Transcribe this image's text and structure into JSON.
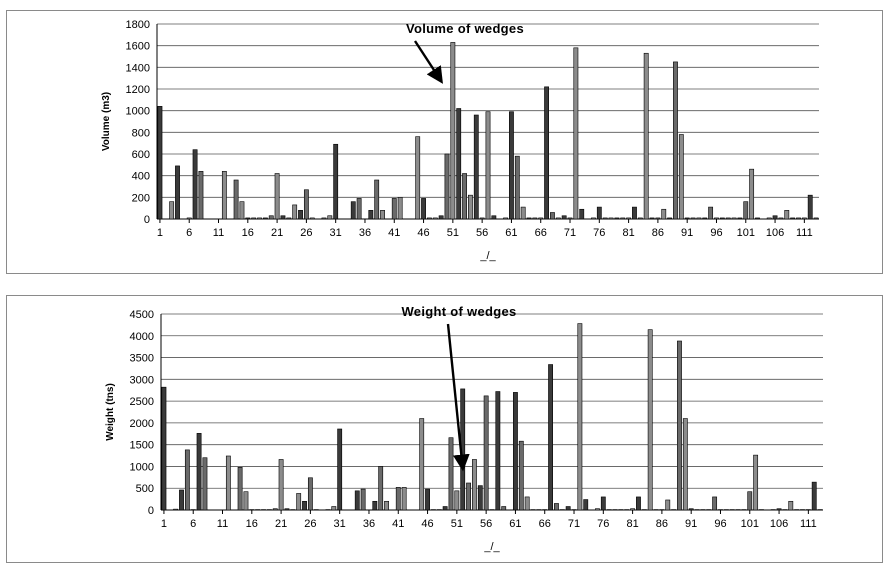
{
  "chart_data": [
    {
      "type": "bar",
      "ylabel": "Volume (m3)",
      "xlabel": "_/_",
      "annotation": "Volume of wedges",
      "annotation_target_x": 49,
      "ylim": [
        0,
        1800
      ],
      "yticks": [
        0,
        200,
        400,
        600,
        800,
        1000,
        1200,
        1400,
        1600,
        1800
      ],
      "xticks": [
        "1",
        "6",
        "11",
        "16",
        "21",
        "26",
        "31",
        "36",
        "41",
        "46",
        "51",
        "56",
        "61",
        "66",
        "71",
        "76",
        "81",
        "86",
        "91",
        "96",
        "101",
        "106",
        "111"
      ],
      "grid": true,
      "legend": "none",
      "x": [
        1,
        2,
        3,
        4,
        5,
        6,
        7,
        8,
        9,
        10,
        11,
        12,
        13,
        14,
        15,
        16,
        17,
        18,
        19,
        20,
        21,
        22,
        23,
        24,
        25,
        26,
        27,
        28,
        29,
        30,
        31,
        32,
        33,
        34,
        35,
        36,
        37,
        38,
        39,
        40,
        41,
        42,
        43,
        44,
        45,
        46,
        47,
        48,
        49,
        50,
        51,
        52,
        53,
        54,
        55,
        56,
        57,
        58,
        59,
        60,
        61,
        62,
        63,
        64,
        65,
        66,
        67,
        68,
        69,
        70,
        71,
        72,
        73,
        74,
        75,
        76,
        77,
        78,
        79,
        80,
        81,
        82,
        83,
        84,
        85,
        86,
        87,
        88,
        89,
        90,
        91,
        92,
        93,
        94,
        95,
        96,
        97,
        98,
        99,
        100,
        101,
        102,
        103,
        104,
        105,
        106,
        107,
        108,
        109,
        110,
        111,
        112,
        113
      ],
      "values": [
        1040,
        0,
        160,
        490,
        0,
        10,
        640,
        440,
        0,
        0,
        0,
        440,
        0,
        360,
        160,
        10,
        10,
        10,
        10,
        30,
        420,
        30,
        10,
        130,
        80,
        270,
        10,
        0,
        10,
        30,
        690,
        0,
        0,
        160,
        190,
        0,
        80,
        360,
        80,
        0,
        190,
        200,
        0,
        0,
        760,
        190,
        10,
        10,
        30,
        600,
        1630,
        1020,
        420,
        220,
        960,
        10,
        990,
        30,
        0,
        10,
        990,
        580,
        110,
        10,
        10,
        10,
        1220,
        60,
        10,
        30,
        10,
        1580,
        90,
        0,
        10,
        110,
        10,
        10,
        10,
        10,
        10,
        110,
        10,
        1530,
        10,
        10,
        90,
        10,
        1450,
        780,
        10,
        10,
        10,
        10,
        110,
        10,
        10,
        10,
        10,
        10,
        160,
        460,
        10,
        0,
        10,
        30,
        10,
        80,
        10,
        10,
        10,
        220,
        10
      ]
    },
    {
      "type": "bar",
      "ylabel": "Weight (tns)",
      "xlabel": "_/_",
      "annotation": "Weight of wedges",
      "annotation_target_x": 52,
      "ylim": [
        0,
        4500
      ],
      "yticks": [
        0,
        500,
        1000,
        1500,
        2000,
        2500,
        3000,
        3500,
        4000,
        4500
      ],
      "xticks": [
        "1",
        "6",
        "11",
        "16",
        "21",
        "26",
        "31",
        "36",
        "41",
        "46",
        "51",
        "56",
        "61",
        "66",
        "71",
        "76",
        "81",
        "86",
        "91",
        "96",
        "101",
        "106",
        "111"
      ],
      "grid": true,
      "legend": "none",
      "x": [
        1,
        2,
        3,
        4,
        5,
        6,
        7,
        8,
        9,
        10,
        11,
        12,
        13,
        14,
        15,
        16,
        17,
        18,
        19,
        20,
        21,
        22,
        23,
        24,
        25,
        26,
        27,
        28,
        29,
        30,
        31,
        32,
        33,
        34,
        35,
        36,
        37,
        38,
        39,
        40,
        41,
        42,
        43,
        44,
        45,
        46,
        47,
        48,
        49,
        50,
        51,
        52,
        53,
        54,
        55,
        56,
        57,
        58,
        59,
        60,
        61,
        62,
        63,
        64,
        65,
        66,
        67,
        68,
        69,
        70,
        71,
        72,
        73,
        74,
        75,
        76,
        77,
        78,
        79,
        80,
        81,
        82,
        83,
        84,
        85,
        86,
        87,
        88,
        89,
        90,
        91,
        92,
        93,
        94,
        95,
        96,
        97,
        98,
        99,
        100,
        101,
        102,
        103,
        104,
        105,
        106,
        107,
        108,
        109,
        110,
        111,
        112,
        113
      ],
      "values": [
        2820,
        0,
        20,
        460,
        1380,
        10,
        1760,
        1200,
        0,
        0,
        0,
        1240,
        0,
        980,
        420,
        10,
        10,
        10,
        10,
        30,
        1160,
        30,
        10,
        380,
        200,
        740,
        10,
        0,
        10,
        80,
        1860,
        0,
        0,
        440,
        480,
        0,
        200,
        1000,
        200,
        0,
        520,
        520,
        0,
        0,
        2100,
        480,
        10,
        10,
        80,
        1660,
        440,
        2780,
        620,
        1160,
        560,
        2620,
        10,
        2720,
        80,
        0,
        2700,
        1580,
        300,
        10,
        10,
        10,
        3340,
        150,
        10,
        80,
        10,
        4280,
        240,
        0,
        30,
        300,
        10,
        10,
        10,
        10,
        30,
        300,
        10,
        4140,
        10,
        10,
        230,
        10,
        3880,
        2100,
        30,
        10,
        10,
        10,
        300,
        10,
        10,
        10,
        10,
        10,
        420,
        1260,
        10,
        0,
        10,
        30,
        10,
        200,
        10,
        10,
        10,
        640,
        10
      ]
    }
  ]
}
